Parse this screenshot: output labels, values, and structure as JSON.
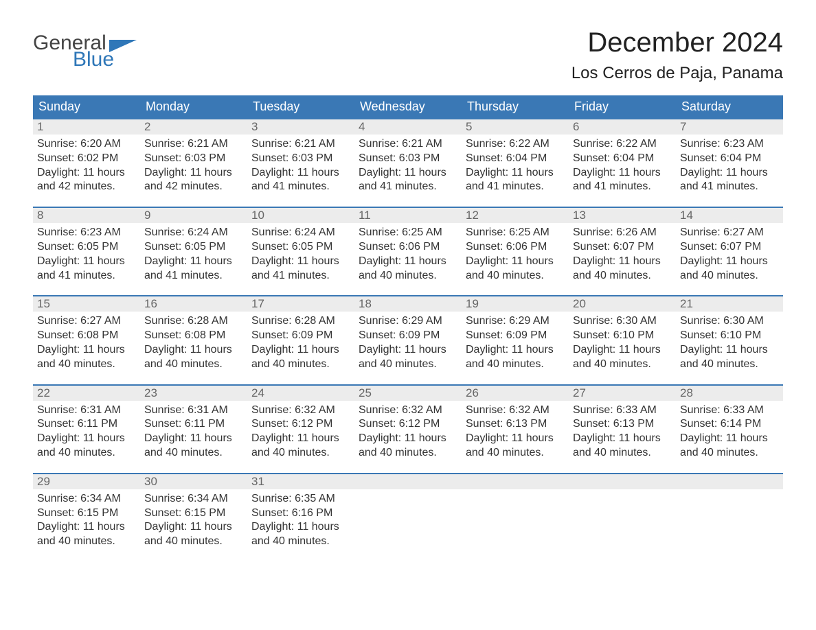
{
  "logo": {
    "word1": "General",
    "word2": "Blue"
  },
  "title": "December 2024",
  "location": "Los Cerros de Paja, Panama",
  "colors": {
    "header_bg": "#3a78b5",
    "header_text": "#ffffff",
    "daynum_bg": "#ececec",
    "daynum_text": "#666666",
    "border_top": "#3a78b5",
    "body_text": "#333333",
    "logo_blue": "#2f77b8",
    "logo_gray": "#444444"
  },
  "weekday_labels": [
    "Sunday",
    "Monday",
    "Tuesday",
    "Wednesday",
    "Thursday",
    "Friday",
    "Saturday"
  ],
  "days": [
    {
      "n": "1",
      "sunrise": "Sunrise: 6:20 AM",
      "sunset": "Sunset: 6:02 PM",
      "d1": "Daylight: 11 hours",
      "d2": "and 42 minutes."
    },
    {
      "n": "2",
      "sunrise": "Sunrise: 6:21 AM",
      "sunset": "Sunset: 6:03 PM",
      "d1": "Daylight: 11 hours",
      "d2": "and 42 minutes."
    },
    {
      "n": "3",
      "sunrise": "Sunrise: 6:21 AM",
      "sunset": "Sunset: 6:03 PM",
      "d1": "Daylight: 11 hours",
      "d2": "and 41 minutes."
    },
    {
      "n": "4",
      "sunrise": "Sunrise: 6:21 AM",
      "sunset": "Sunset: 6:03 PM",
      "d1": "Daylight: 11 hours",
      "d2": "and 41 minutes."
    },
    {
      "n": "5",
      "sunrise": "Sunrise: 6:22 AM",
      "sunset": "Sunset: 6:04 PM",
      "d1": "Daylight: 11 hours",
      "d2": "and 41 minutes."
    },
    {
      "n": "6",
      "sunrise": "Sunrise: 6:22 AM",
      "sunset": "Sunset: 6:04 PM",
      "d1": "Daylight: 11 hours",
      "d2": "and 41 minutes."
    },
    {
      "n": "7",
      "sunrise": "Sunrise: 6:23 AM",
      "sunset": "Sunset: 6:04 PM",
      "d1": "Daylight: 11 hours",
      "d2": "and 41 minutes."
    },
    {
      "n": "8",
      "sunrise": "Sunrise: 6:23 AM",
      "sunset": "Sunset: 6:05 PM",
      "d1": "Daylight: 11 hours",
      "d2": "and 41 minutes."
    },
    {
      "n": "9",
      "sunrise": "Sunrise: 6:24 AM",
      "sunset": "Sunset: 6:05 PM",
      "d1": "Daylight: 11 hours",
      "d2": "and 41 minutes."
    },
    {
      "n": "10",
      "sunrise": "Sunrise: 6:24 AM",
      "sunset": "Sunset: 6:05 PM",
      "d1": "Daylight: 11 hours",
      "d2": "and 41 minutes."
    },
    {
      "n": "11",
      "sunrise": "Sunrise: 6:25 AM",
      "sunset": "Sunset: 6:06 PM",
      "d1": "Daylight: 11 hours",
      "d2": "and 40 minutes."
    },
    {
      "n": "12",
      "sunrise": "Sunrise: 6:25 AM",
      "sunset": "Sunset: 6:06 PM",
      "d1": "Daylight: 11 hours",
      "d2": "and 40 minutes."
    },
    {
      "n": "13",
      "sunrise": "Sunrise: 6:26 AM",
      "sunset": "Sunset: 6:07 PM",
      "d1": "Daylight: 11 hours",
      "d2": "and 40 minutes."
    },
    {
      "n": "14",
      "sunrise": "Sunrise: 6:27 AM",
      "sunset": "Sunset: 6:07 PM",
      "d1": "Daylight: 11 hours",
      "d2": "and 40 minutes."
    },
    {
      "n": "15",
      "sunrise": "Sunrise: 6:27 AM",
      "sunset": "Sunset: 6:08 PM",
      "d1": "Daylight: 11 hours",
      "d2": "and 40 minutes."
    },
    {
      "n": "16",
      "sunrise": "Sunrise: 6:28 AM",
      "sunset": "Sunset: 6:08 PM",
      "d1": "Daylight: 11 hours",
      "d2": "and 40 minutes."
    },
    {
      "n": "17",
      "sunrise": "Sunrise: 6:28 AM",
      "sunset": "Sunset: 6:09 PM",
      "d1": "Daylight: 11 hours",
      "d2": "and 40 minutes."
    },
    {
      "n": "18",
      "sunrise": "Sunrise: 6:29 AM",
      "sunset": "Sunset: 6:09 PM",
      "d1": "Daylight: 11 hours",
      "d2": "and 40 minutes."
    },
    {
      "n": "19",
      "sunrise": "Sunrise: 6:29 AM",
      "sunset": "Sunset: 6:09 PM",
      "d1": "Daylight: 11 hours",
      "d2": "and 40 minutes."
    },
    {
      "n": "20",
      "sunrise": "Sunrise: 6:30 AM",
      "sunset": "Sunset: 6:10 PM",
      "d1": "Daylight: 11 hours",
      "d2": "and 40 minutes."
    },
    {
      "n": "21",
      "sunrise": "Sunrise: 6:30 AM",
      "sunset": "Sunset: 6:10 PM",
      "d1": "Daylight: 11 hours",
      "d2": "and 40 minutes."
    },
    {
      "n": "22",
      "sunrise": "Sunrise: 6:31 AM",
      "sunset": "Sunset: 6:11 PM",
      "d1": "Daylight: 11 hours",
      "d2": "and 40 minutes."
    },
    {
      "n": "23",
      "sunrise": "Sunrise: 6:31 AM",
      "sunset": "Sunset: 6:11 PM",
      "d1": "Daylight: 11 hours",
      "d2": "and 40 minutes."
    },
    {
      "n": "24",
      "sunrise": "Sunrise: 6:32 AM",
      "sunset": "Sunset: 6:12 PM",
      "d1": "Daylight: 11 hours",
      "d2": "and 40 minutes."
    },
    {
      "n": "25",
      "sunrise": "Sunrise: 6:32 AM",
      "sunset": "Sunset: 6:12 PM",
      "d1": "Daylight: 11 hours",
      "d2": "and 40 minutes."
    },
    {
      "n": "26",
      "sunrise": "Sunrise: 6:32 AM",
      "sunset": "Sunset: 6:13 PM",
      "d1": "Daylight: 11 hours",
      "d2": "and 40 minutes."
    },
    {
      "n": "27",
      "sunrise": "Sunrise: 6:33 AM",
      "sunset": "Sunset: 6:13 PM",
      "d1": "Daylight: 11 hours",
      "d2": "and 40 minutes."
    },
    {
      "n": "28",
      "sunrise": "Sunrise: 6:33 AM",
      "sunset": "Sunset: 6:14 PM",
      "d1": "Daylight: 11 hours",
      "d2": "and 40 minutes."
    },
    {
      "n": "29",
      "sunrise": "Sunrise: 6:34 AM",
      "sunset": "Sunset: 6:15 PM",
      "d1": "Daylight: 11 hours",
      "d2": "and 40 minutes."
    },
    {
      "n": "30",
      "sunrise": "Sunrise: 6:34 AM",
      "sunset": "Sunset: 6:15 PM",
      "d1": "Daylight: 11 hours",
      "d2": "and 40 minutes."
    },
    {
      "n": "31",
      "sunrise": "Sunrise: 6:35 AM",
      "sunset": "Sunset: 6:16 PM",
      "d1": "Daylight: 11 hours",
      "d2": "and 40 minutes."
    }
  ],
  "layout": {
    "weeks": 5,
    "start_weekday_index": 0,
    "total_cells": 35
  }
}
